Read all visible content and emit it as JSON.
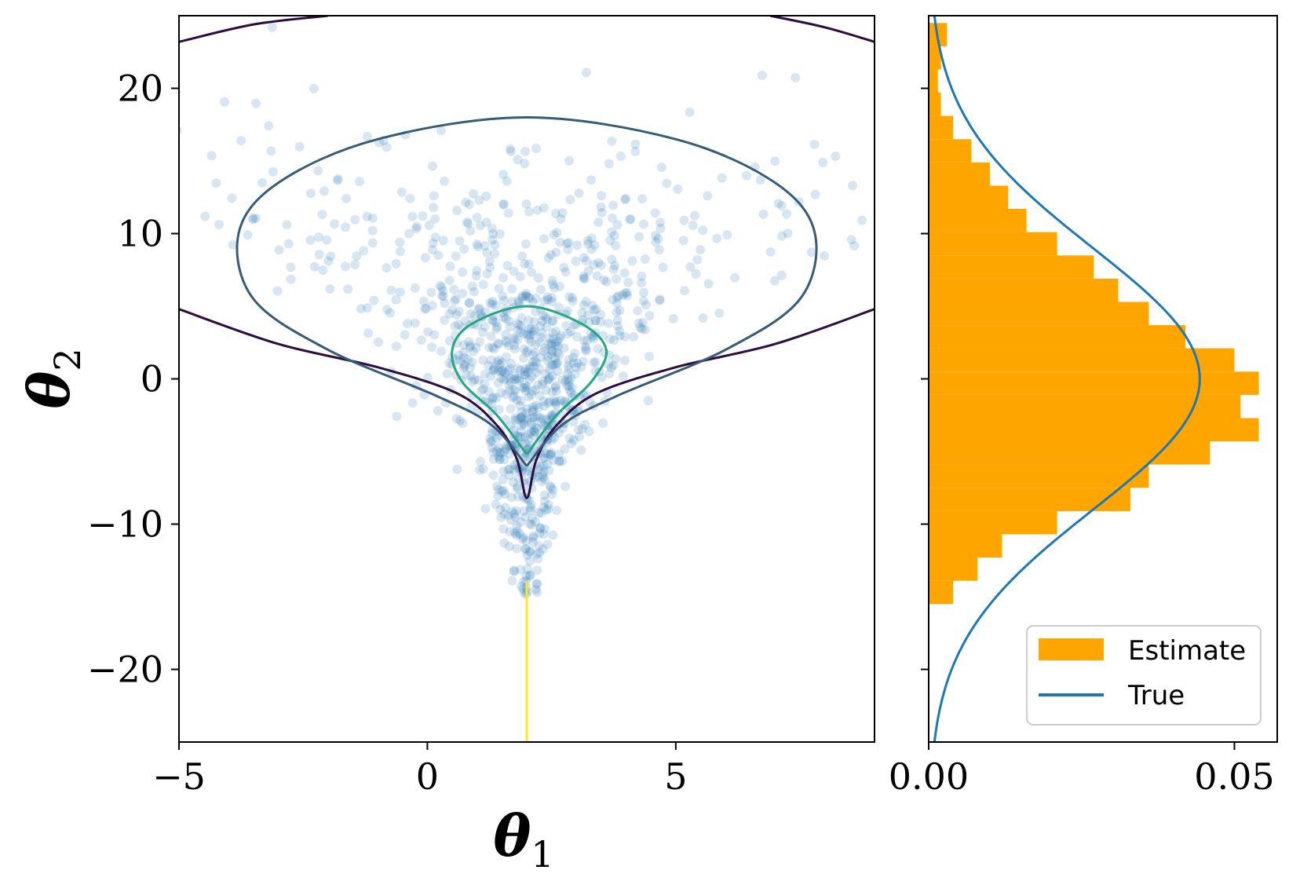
{
  "chart_data": [
    {
      "type": "scatter",
      "xlabel": "θ",
      "xlabel_sub": "1",
      "ylabel": "θ",
      "ylabel_sub": "2",
      "xlim": [
        -5,
        9
      ],
      "ylim": [
        -25,
        25
      ],
      "xticks": [
        -5,
        0,
        5
      ],
      "xtick_labels": [
        "−5",
        "0",
        "5"
      ],
      "yticks": [
        -20,
        -10,
        0,
        10,
        20
      ],
      "ytick_labels": [
        "−20",
        "−10",
        "0",
        "10",
        "20"
      ],
      "grid": false,
      "contour_colors": [
        "#3b0f4f",
        "#365c7a",
        "#26a782",
        "#fde725"
      ],
      "point_color": "#1f77b4",
      "contours": [
        {
          "level": "outer",
          "color": "#2d0c3f",
          "points": [
            [
              -5,
              4.8
            ],
            [
              -3,
              2.4
            ],
            [
              -1,
              0.8
            ],
            [
              0.6,
              -1.0
            ],
            [
              1.4,
              -3.2
            ],
            [
              1.8,
              -5.5
            ],
            [
              2.0,
              -8.2
            ],
            [
              2.2,
              -5.5
            ],
            [
              2.6,
              -3.2
            ],
            [
              3.4,
              -1.0
            ],
            [
              5,
              0.8
            ],
            [
              7,
              2.4
            ],
            [
              9,
              4.8
            ]
          ]
        },
        {
          "level": "outer-top",
          "color": "#2d0c3f",
          "points": [
            [
              -5,
              23.2
            ],
            [
              -3.5,
              24.4
            ],
            [
              -2.0,
              25.0
            ]
          ]
        },
        {
          "level": "outer-top-right",
          "color": "#2d0c3f",
          "points": [
            [
              6.9,
              25.0
            ],
            [
              8.0,
              24.2
            ],
            [
              9,
              23.2
            ]
          ]
        },
        {
          "level": "mid",
          "color": "#365c7a",
          "points": [
            [
              2.0,
              -6.0
            ],
            [
              1.3,
              -3.2
            ],
            [
              0.2,
              -1.2
            ],
            [
              -2.0,
              2.0
            ],
            [
              -3.5,
              5.5
            ],
            [
              -3.8,
              10.0
            ],
            [
              -3.0,
              13.5
            ],
            [
              -1.0,
              16.5
            ],
            [
              2.0,
              18.0
            ],
            [
              5.0,
              16.5
            ],
            [
              7.0,
              13.5
            ],
            [
              7.8,
              10.0
            ],
            [
              7.5,
              5.5
            ],
            [
              6.0,
              2.0
            ],
            [
              3.8,
              -1.2
            ],
            [
              2.7,
              -3.2
            ],
            [
              2.0,
              -6.0
            ]
          ]
        },
        {
          "level": "inner",
          "color": "#26a782",
          "points": [
            [
              2.0,
              -5.2
            ],
            [
              1.4,
              -2.5
            ],
            [
              0.7,
              -0.2
            ],
            [
              0.5,
              2.0
            ],
            [
              0.9,
              3.8
            ],
            [
              2.0,
              5.0
            ],
            [
              3.1,
              3.8
            ],
            [
              3.6,
              2.0
            ],
            [
              3.3,
              -0.2
            ],
            [
              2.6,
              -2.5
            ],
            [
              2.0,
              -5.2
            ]
          ]
        },
        {
          "level": "spine",
          "color": "#fde725",
          "points": [
            [
              2.0,
              -25.0
            ],
            [
              2.0,
              -14.0
            ]
          ]
        }
      ]
    },
    {
      "type": "bar",
      "orientation": "horizontal",
      "xlim": [
        0.0,
        0.057
      ],
      "ylim": [
        -25,
        25
      ],
      "xticks": [
        0.0,
        0.05
      ],
      "xtick_labels": [
        "0.00",
        "0.05"
      ],
      "grid": false,
      "legend": {
        "placement": "lower-right",
        "entries": [
          "Estimate",
          "True"
        ]
      },
      "series": [
        {
          "name": "Estimate",
          "color": "#ffa500",
          "bin_edges": [
            -15.5,
            -13.9,
            -12.3,
            -10.7,
            -9.1,
            -7.5,
            -5.9,
            -4.3,
            -2.7,
            -1.1,
            0.5,
            2.1,
            3.7,
            5.3,
            6.9,
            8.5,
            10.1,
            11.7,
            13.3,
            14.9,
            16.5,
            18.1,
            19.7,
            21.3,
            22.9,
            24.5
          ],
          "values": [
            0.004,
            0.008,
            0.012,
            0.021,
            0.033,
            0.036,
            0.046,
            0.054,
            0.051,
            0.054,
            0.05,
            0.042,
            0.036,
            0.031,
            0.027,
            0.021,
            0.016,
            0.013,
            0.01,
            0.007,
            0.004,
            0.002,
            0.0015,
            0.002,
            0.003
          ]
        },
        {
          "name": "True",
          "color": "#1f77b4",
          "curve": "gaussian",
          "mean": 0.0,
          "std": 9.0
        }
      ]
    }
  ]
}
